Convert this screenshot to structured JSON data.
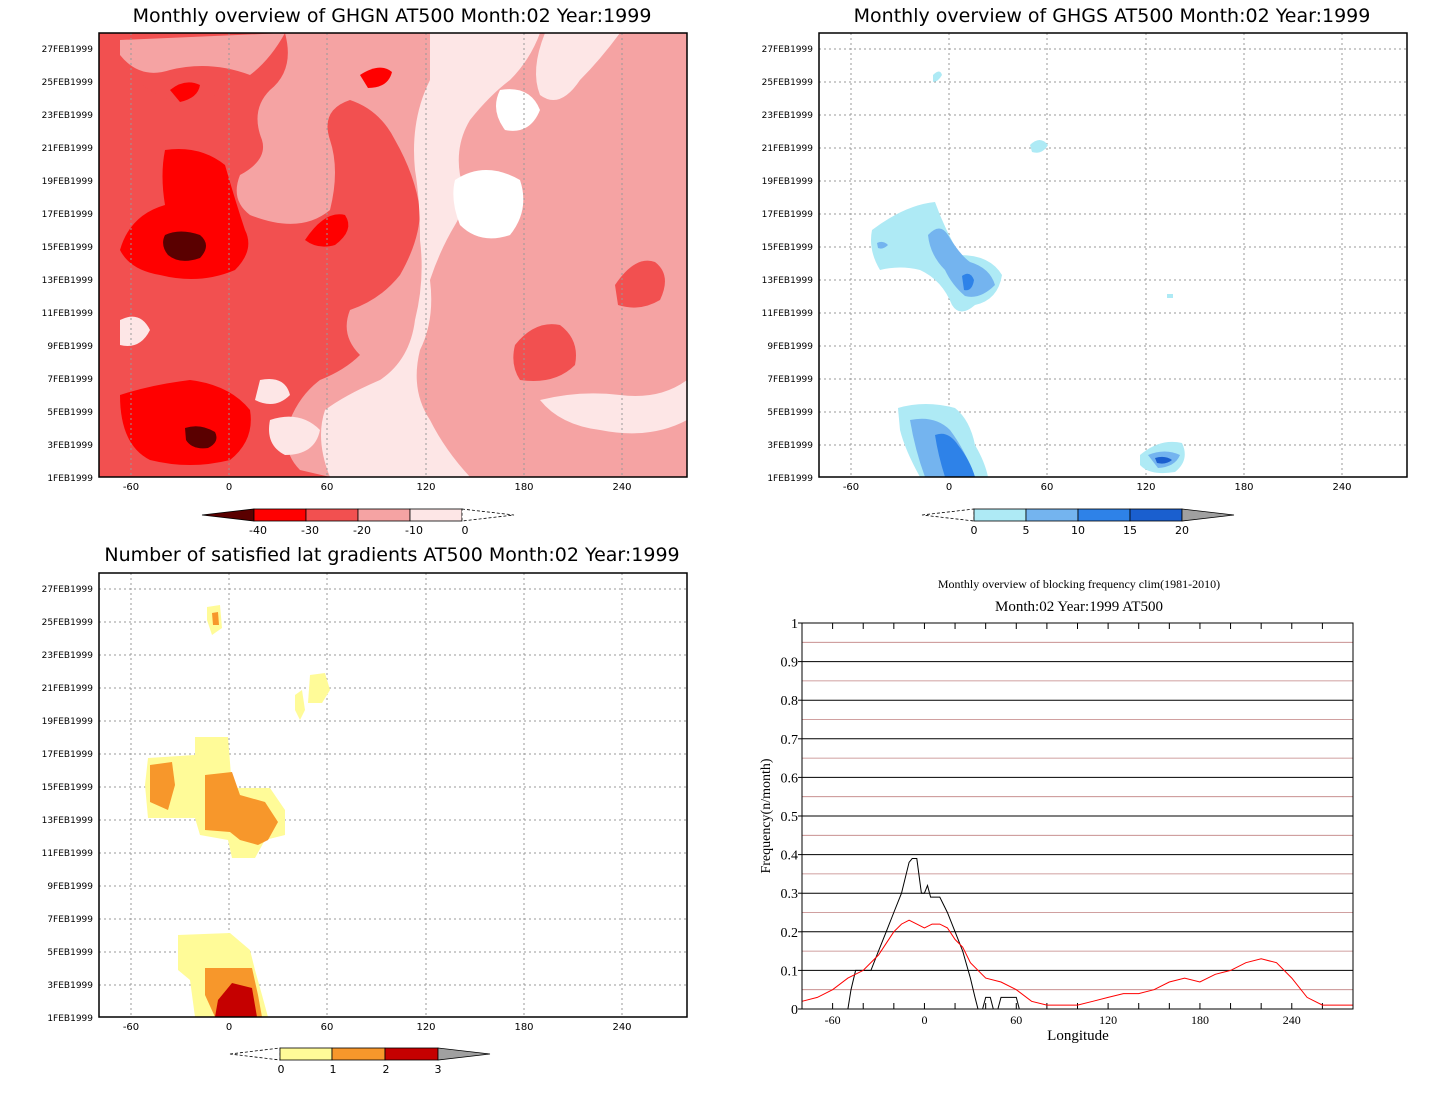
{
  "panels": {
    "ghgn": {
      "title": "Monthly overview of GHGN AT500 Month:02 Year:1999",
      "y_ticks": [
        "27FEB1999",
        "25FEB1999",
        "23FEB1999",
        "21FEB1999",
        "19FEB1999",
        "17FEB1999",
        "15FEB1999",
        "13FEB1999",
        "11FEB1999",
        "9FEB1999",
        "7FEB1999",
        "5FEB1999",
        "3FEB1999",
        "1FEB1999"
      ],
      "x_ticks": [
        "-60",
        "0",
        "60",
        "120",
        "180",
        "240"
      ],
      "colorbar": {
        "labels": [
          "-40",
          "-30",
          "-20",
          "-10",
          "0"
        ],
        "colors": [
          "#5a0000",
          "#ff0000",
          "#f25050",
          "#f5a3a3",
          "#fde6e6",
          "#ffffff"
        ]
      }
    },
    "ghgs": {
      "title": "Monthly overview of GHGS AT500 Month:02 Year:1999",
      "y_ticks": [
        "27FEB1999",
        "25FEB1999",
        "23FEB1999",
        "21FEB1999",
        "19FEB1999",
        "17FEB1999",
        "15FEB1999",
        "13FEB1999",
        "11FEB1999",
        "9FEB1999",
        "7FEB1999",
        "5FEB1999",
        "3FEB1999",
        "1FEB1999"
      ],
      "x_ticks": [
        "-60",
        "0",
        "60",
        "120",
        "180",
        "240"
      ],
      "colorbar": {
        "labels": [
          "0",
          "5",
          "10",
          "15",
          "20"
        ],
        "colors": [
          "#ffffff",
          "#aeeaf5",
          "#74b4ef",
          "#2e82e8",
          "#1a5fcf",
          "#a0a0a0"
        ]
      }
    },
    "latgrad": {
      "title": "Number of satisfied lat gradients AT500 Month:02 Year:1999",
      "y_ticks": [
        "27FEB1999",
        "25FEB1999",
        "23FEB1999",
        "21FEB1999",
        "19FEB1999",
        "17FEB1999",
        "15FEB1999",
        "13FEB1999",
        "11FEB1999",
        "9FEB1999",
        "7FEB1999",
        "5FEB1999",
        "3FEB1999",
        "1FEB1999"
      ],
      "x_ticks": [
        "-60",
        "0",
        "60",
        "120",
        "180",
        "240"
      ],
      "colorbar": {
        "labels": [
          "0",
          "1",
          "2",
          "3"
        ],
        "colors": [
          "#ffffff",
          "#fffb98",
          "#f7972b",
          "#c50000",
          "#a0a0a0"
        ]
      }
    },
    "freq": {
      "title": "Monthly overview of blocking frequency clim(1981-2010)",
      "subtitle": "Month:02 Year:1999  AT500",
      "xlabel": "Longitude",
      "ylabel": "Frequency(n/month)"
    }
  },
  "chart_data": [
    {
      "type": "heatmap",
      "title": "Monthly overview of GHGN AT500 Month:02 Year:1999",
      "x_axis": "longitude",
      "xlim": [
        -80,
        280
      ],
      "y_axis": "date",
      "ylim": [
        "1FEB1999",
        "28FEB1999"
      ],
      "legend_levels": [
        -40,
        -30,
        -20,
        -10,
        0
      ]
    },
    {
      "type": "heatmap",
      "title": "Monthly overview of GHGS AT500 Month:02 Year:1999",
      "x_axis": "longitude",
      "xlim": [
        -80,
        280
      ],
      "y_axis": "date",
      "ylim": [
        "1FEB1999",
        "28FEB1999"
      ],
      "legend_levels": [
        0,
        5,
        10,
        15,
        20
      ]
    },
    {
      "type": "heatmap",
      "title": "Number of satisfied lat gradients AT500 Month:02 Year:1999",
      "x_axis": "longitude",
      "xlim": [
        -80,
        280
      ],
      "y_axis": "date",
      "ylim": [
        "1FEB1999",
        "28FEB1999"
      ],
      "legend_levels": [
        0,
        1,
        2,
        3
      ]
    },
    {
      "type": "line",
      "title": "Monthly overview of blocking frequency clim(1981-2010)",
      "subtitle": "Month:02 Year:1999  AT500",
      "xlabel": "Longitude",
      "ylabel": "Frequency(n/month)",
      "xlim": [
        -80,
        280
      ],
      "ylim": [
        0,
        1
      ],
      "xticks": [
        -60,
        0,
        60,
        120,
        180,
        240
      ],
      "yticks": [
        0,
        0.1,
        0.2,
        0.3,
        0.4,
        0.5,
        0.6,
        0.7,
        0.8,
        0.9,
        1
      ],
      "series": [
        {
          "color": "#000000",
          "x": [
            -80,
            -50,
            -48,
            -45,
            -40,
            -35,
            -30,
            -25,
            -20,
            -15,
            -10,
            -8,
            -5,
            -2,
            0,
            2,
            4,
            6,
            10,
            15,
            20,
            25,
            30,
            33,
            35,
            38,
            40,
            43,
            45,
            48,
            50,
            53,
            55,
            58,
            60,
            62,
            280
          ],
          "y": [
            0,
            0,
            0.05,
            0.1,
            0.1,
            0.1,
            0.15,
            0.2,
            0.25,
            0.3,
            0.38,
            0.39,
            0.39,
            0.3,
            0.3,
            0.32,
            0.29,
            0.29,
            0.29,
            0.25,
            0.2,
            0.15,
            0.08,
            0.03,
            0,
            0,
            0.03,
            0.03,
            0,
            0,
            0.03,
            0.03,
            0.03,
            0.03,
            0.03,
            0,
            0
          ]
        },
        {
          "color": "#ff0000",
          "x": [
            -80,
            -70,
            -60,
            -50,
            -40,
            -30,
            -20,
            -15,
            -10,
            -5,
            0,
            5,
            10,
            15,
            20,
            25,
            30,
            40,
            50,
            60,
            70,
            80,
            90,
            100,
            110,
            120,
            130,
            140,
            150,
            160,
            170,
            180,
            190,
            200,
            210,
            220,
            230,
            240,
            250,
            260,
            270,
            280
          ],
          "y": [
            0.02,
            0.03,
            0.05,
            0.08,
            0.1,
            0.14,
            0.2,
            0.22,
            0.23,
            0.22,
            0.21,
            0.22,
            0.22,
            0.21,
            0.18,
            0.16,
            0.12,
            0.08,
            0.07,
            0.05,
            0.02,
            0.01,
            0.01,
            0.01,
            0.02,
            0.03,
            0.04,
            0.04,
            0.05,
            0.07,
            0.08,
            0.07,
            0.09,
            0.1,
            0.12,
            0.13,
            0.12,
            0.08,
            0.03,
            0.01,
            0.01,
            0.01
          ]
        }
      ]
    }
  ]
}
